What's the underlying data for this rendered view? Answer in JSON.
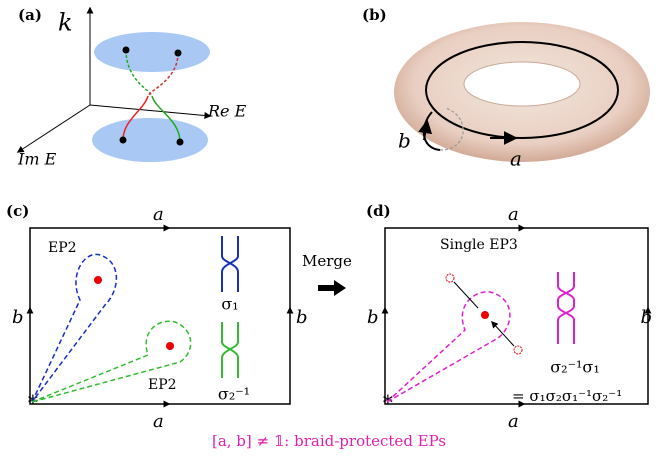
{
  "panel_a": {
    "label": "(a)",
    "axis_k": "k",
    "axis_re": "Re E",
    "axis_im": "Im E"
  },
  "panel_b": {
    "label": "(b)",
    "loop_b": "b",
    "loop_a": "a"
  },
  "panel_c": {
    "label": "(c)",
    "edge_top": "a",
    "edge_bottom": "a",
    "edge_left": "b",
    "edge_right": "b",
    "ep_upper": "EP2",
    "ep_lower": "EP2",
    "braid_upper": "σ₁",
    "braid_lower": "σ₂⁻¹"
  },
  "merge": "Merge",
  "panel_d": {
    "label": "(d)",
    "edge_top": "a",
    "edge_bottom": "a",
    "edge_left": "b",
    "edge_right": "b",
    "ep": "Single EP3",
    "braid": "σ₂⁻¹σ₁",
    "braid_expansion": "= σ₁σ₂σ₁⁻¹σ₂⁻¹"
  },
  "caption": "[a, b] ≠ 𝟙: braid-protected EPs"
}
